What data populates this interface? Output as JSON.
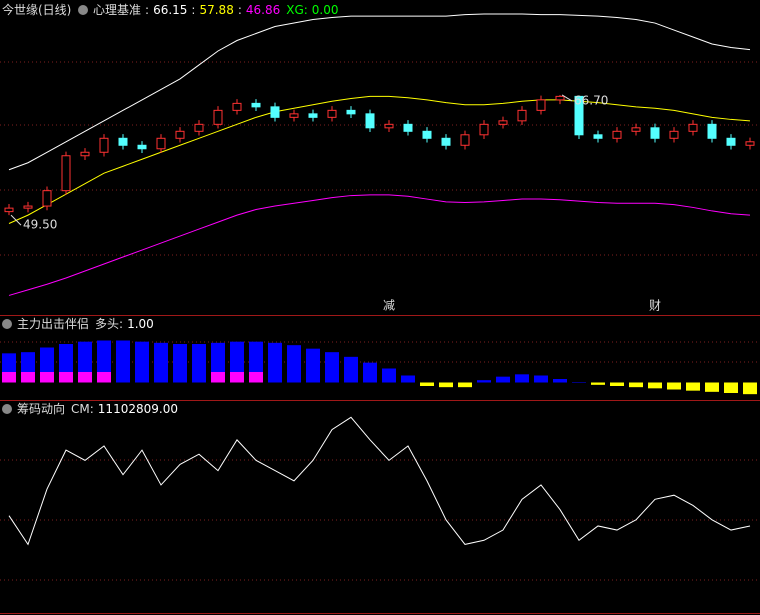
{
  "chart_data": [
    {
      "type": "candlestick",
      "title": "今世缘(日线)",
      "indicator": "心理基准",
      "sep": ":",
      "legend_values": [
        {
          "value": 66.15,
          "label": "66.15",
          "color": "#ffffff"
        },
        {
          "value": 57.88,
          "label": "57.88",
          "color": "#ffff00"
        },
        {
          "value": 46.86,
          "label": "46.86",
          "color": "#ff00ff"
        }
      ],
      "xg": {
        "name": "XG:",
        "value": 0,
        "label": "0.00",
        "color": "#00ff00"
      },
      "ylim": [
        35.2,
        80.3
      ],
      "up_color": "#ff3232",
      "down_color": "#54ffff",
      "open": [
        50,
        50.5,
        50.8,
        53,
        58,
        58.5,
        60.5,
        59.5,
        59,
        60.5,
        61.5,
        62.5,
        64.5,
        65.5,
        65,
        63.5,
        64,
        63.5,
        64.5,
        64,
        62,
        62.5,
        61.5,
        60.5,
        59.5,
        61,
        62.5,
        63,
        64.5,
        66,
        66.5,
        61,
        60.5,
        61.5,
        62,
        60.5,
        61.5,
        62.5,
        60.5,
        59.5
      ],
      "high": [
        51.1,
        51.4,
        53.6,
        58.6,
        59.1,
        61.1,
        61.1,
        60.1,
        61.1,
        62.1,
        63.1,
        65.1,
        66.1,
        66.1,
        65.6,
        64.6,
        64.6,
        65.1,
        65.1,
        64.6,
        63.1,
        63.1,
        62.1,
        61.1,
        61.6,
        63.1,
        63.6,
        65.1,
        66.6,
        66.7,
        66.6,
        61.6,
        62.1,
        62.6,
        62.6,
        62.1,
        63.1,
        63.1,
        61.1,
        60.6
      ],
      "low": [
        49.5,
        49.9,
        50.2,
        52.4,
        57.4,
        57.9,
        58.9,
        58.4,
        58.4,
        59.9,
        60.9,
        61.9,
        63.9,
        64.4,
        62.9,
        62.9,
        62.9,
        62.9,
        63.4,
        61.4,
        61.4,
        60.9,
        59.9,
        58.9,
        58.9,
        60.4,
        61.9,
        62.4,
        63.9,
        65.4,
        60.4,
        59.9,
        59.9,
        60.9,
        59.9,
        59.9,
        60.9,
        59.9,
        58.9,
        58.9
      ],
      "close": [
        50.5,
        50.8,
        53,
        58,
        58.5,
        60.5,
        59.5,
        59,
        60.5,
        61.5,
        62.5,
        64.5,
        65.5,
        65,
        63.5,
        64,
        63.5,
        64.5,
        64,
        62,
        62.5,
        61.5,
        60.5,
        59.5,
        61,
        62.5,
        63,
        64.5,
        66,
        66.5,
        61,
        60.5,
        61.5,
        62,
        60.5,
        61.5,
        62.5,
        60.5,
        59.5,
        60
      ],
      "bands": [
        {
          "color": "#ffffff",
          "values": [
            56,
            57,
            58.5,
            60,
            61.5,
            63,
            64.5,
            66,
            67.5,
            69,
            71,
            73,
            74.5,
            75.5,
            76.5,
            77,
            77.5,
            77.8,
            78,
            78,
            78,
            78,
            78,
            78,
            78.2,
            78.3,
            78.3,
            78.3,
            78.2,
            78.2,
            78.1,
            78,
            77.8,
            77.5,
            77,
            76,
            75,
            74,
            73.5,
            73.2
          ]
        },
        {
          "color": "#ffff00",
          "values": [
            48.3,
            49.5,
            51,
            52.5,
            54,
            55.5,
            56.5,
            57.5,
            58.5,
            59.5,
            60.5,
            61.5,
            62.5,
            63.5,
            64.3,
            64.8,
            65.3,
            65.8,
            66.2,
            66.5,
            66.5,
            66.3,
            66,
            65.6,
            65.3,
            65.3,
            65.5,
            65.8,
            66,
            66,
            65.8,
            65.6,
            65.3,
            65,
            64.8,
            64.5,
            64,
            63.5,
            63.2,
            63
          ]
        },
        {
          "color": "#ff00ff",
          "values": [
            38,
            38.8,
            39.6,
            40.5,
            41.5,
            42.5,
            43.5,
            44.5,
            45.5,
            46.5,
            47.5,
            48.5,
            49.5,
            50.3,
            50.8,
            51.2,
            51.6,
            52,
            52.3,
            52.4,
            52.4,
            52.2,
            51.8,
            51.4,
            51.3,
            51.4,
            51.6,
            51.8,
            51.8,
            51.7,
            51.5,
            51.3,
            51.2,
            51.2,
            51.2,
            51,
            50.6,
            50.1,
            49.7,
            49.5
          ]
        }
      ],
      "annotations": [
        {
          "index": 29,
          "value": 66.7,
          "label": "66.70"
        },
        {
          "index": 0,
          "value": 49.5,
          "label": "49.50"
        }
      ],
      "signals": [
        {
          "index": 20,
          "label": "减",
          "color": "#33ff66"
        },
        {
          "index": 34,
          "label": "财",
          "color": "#aaddff"
        }
      ]
    },
    {
      "type": "bar",
      "title": "主力出击伴侣",
      "indicator": "多头:",
      "indicator_value": {
        "value": 1,
        "label": "1.00",
        "color": "#ffffff"
      },
      "ylim": [
        -15,
        45
      ],
      "series": [
        {
          "color": "#0000ff",
          "neg_color": "#ffff00",
          "values": [
            25,
            26,
            30,
            33,
            35,
            36,
            36,
            35,
            34,
            33,
            33,
            34,
            35,
            35,
            34,
            32,
            29,
            26,
            22,
            17,
            12,
            6,
            -3,
            -4,
            -4,
            2,
            5,
            7,
            6,
            3,
            0,
            -2,
            -3,
            -4,
            -5,
            -6,
            -7,
            -8,
            -9,
            -10
          ]
        },
        {
          "color": "#ff00ff",
          "values": [
            9,
            9,
            9,
            9,
            9,
            9,
            null,
            null,
            null,
            null,
            null,
            9,
            9,
            9,
            null,
            null,
            null,
            null,
            null,
            null,
            null,
            null,
            null,
            null,
            null,
            null,
            null,
            null,
            null,
            null,
            null,
            null,
            null,
            null,
            null,
            null,
            null,
            null,
            null,
            null
          ]
        }
      ]
    },
    {
      "type": "line",
      "title": "筹码动向",
      "indicator": "CM:",
      "indicator_value": {
        "value": 11102809,
        "label": "11102809.00",
        "color": "#ffffff"
      },
      "ylim": [
        0,
        100
      ],
      "color": "#ffffff",
      "values": [
        46,
        32,
        59,
        78,
        73,
        80,
        66,
        78,
        61,
        71,
        76,
        68,
        83,
        73,
        68,
        63,
        73,
        88,
        94,
        83,
        73,
        80,
        63,
        44,
        32,
        34,
        39,
        54,
        61,
        49,
        34,
        41,
        39,
        44,
        54,
        56,
        51,
        44,
        39,
        41
      ]
    }
  ]
}
